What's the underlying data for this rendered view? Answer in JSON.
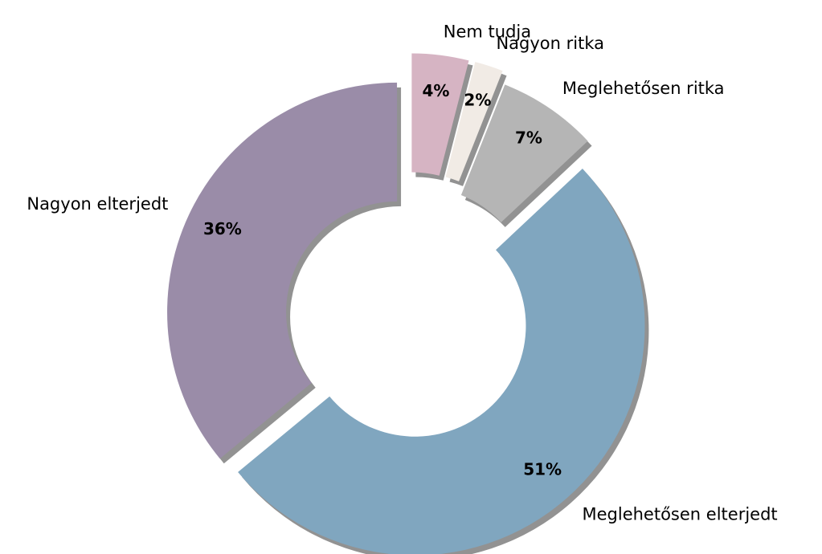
{
  "chart_data": {
    "type": "donut",
    "categories": [
      "Nagyon elterjedt",
      "Meglehetősen elterjedt",
      "Meglehetősen ritka",
      "Nagyon ritka",
      "Nem tudja"
    ],
    "values": [
      36,
      51,
      7,
      2,
      4
    ],
    "value_labels": [
      "36%",
      "51%",
      "7%",
      "2%",
      "4%"
    ],
    "colors": [
      "#9a8ca8",
      "#80a6bf",
      "#b5b5b5",
      "#f1ebe5",
      "#d6b4c3"
    ],
    "shadow": true
  }
}
